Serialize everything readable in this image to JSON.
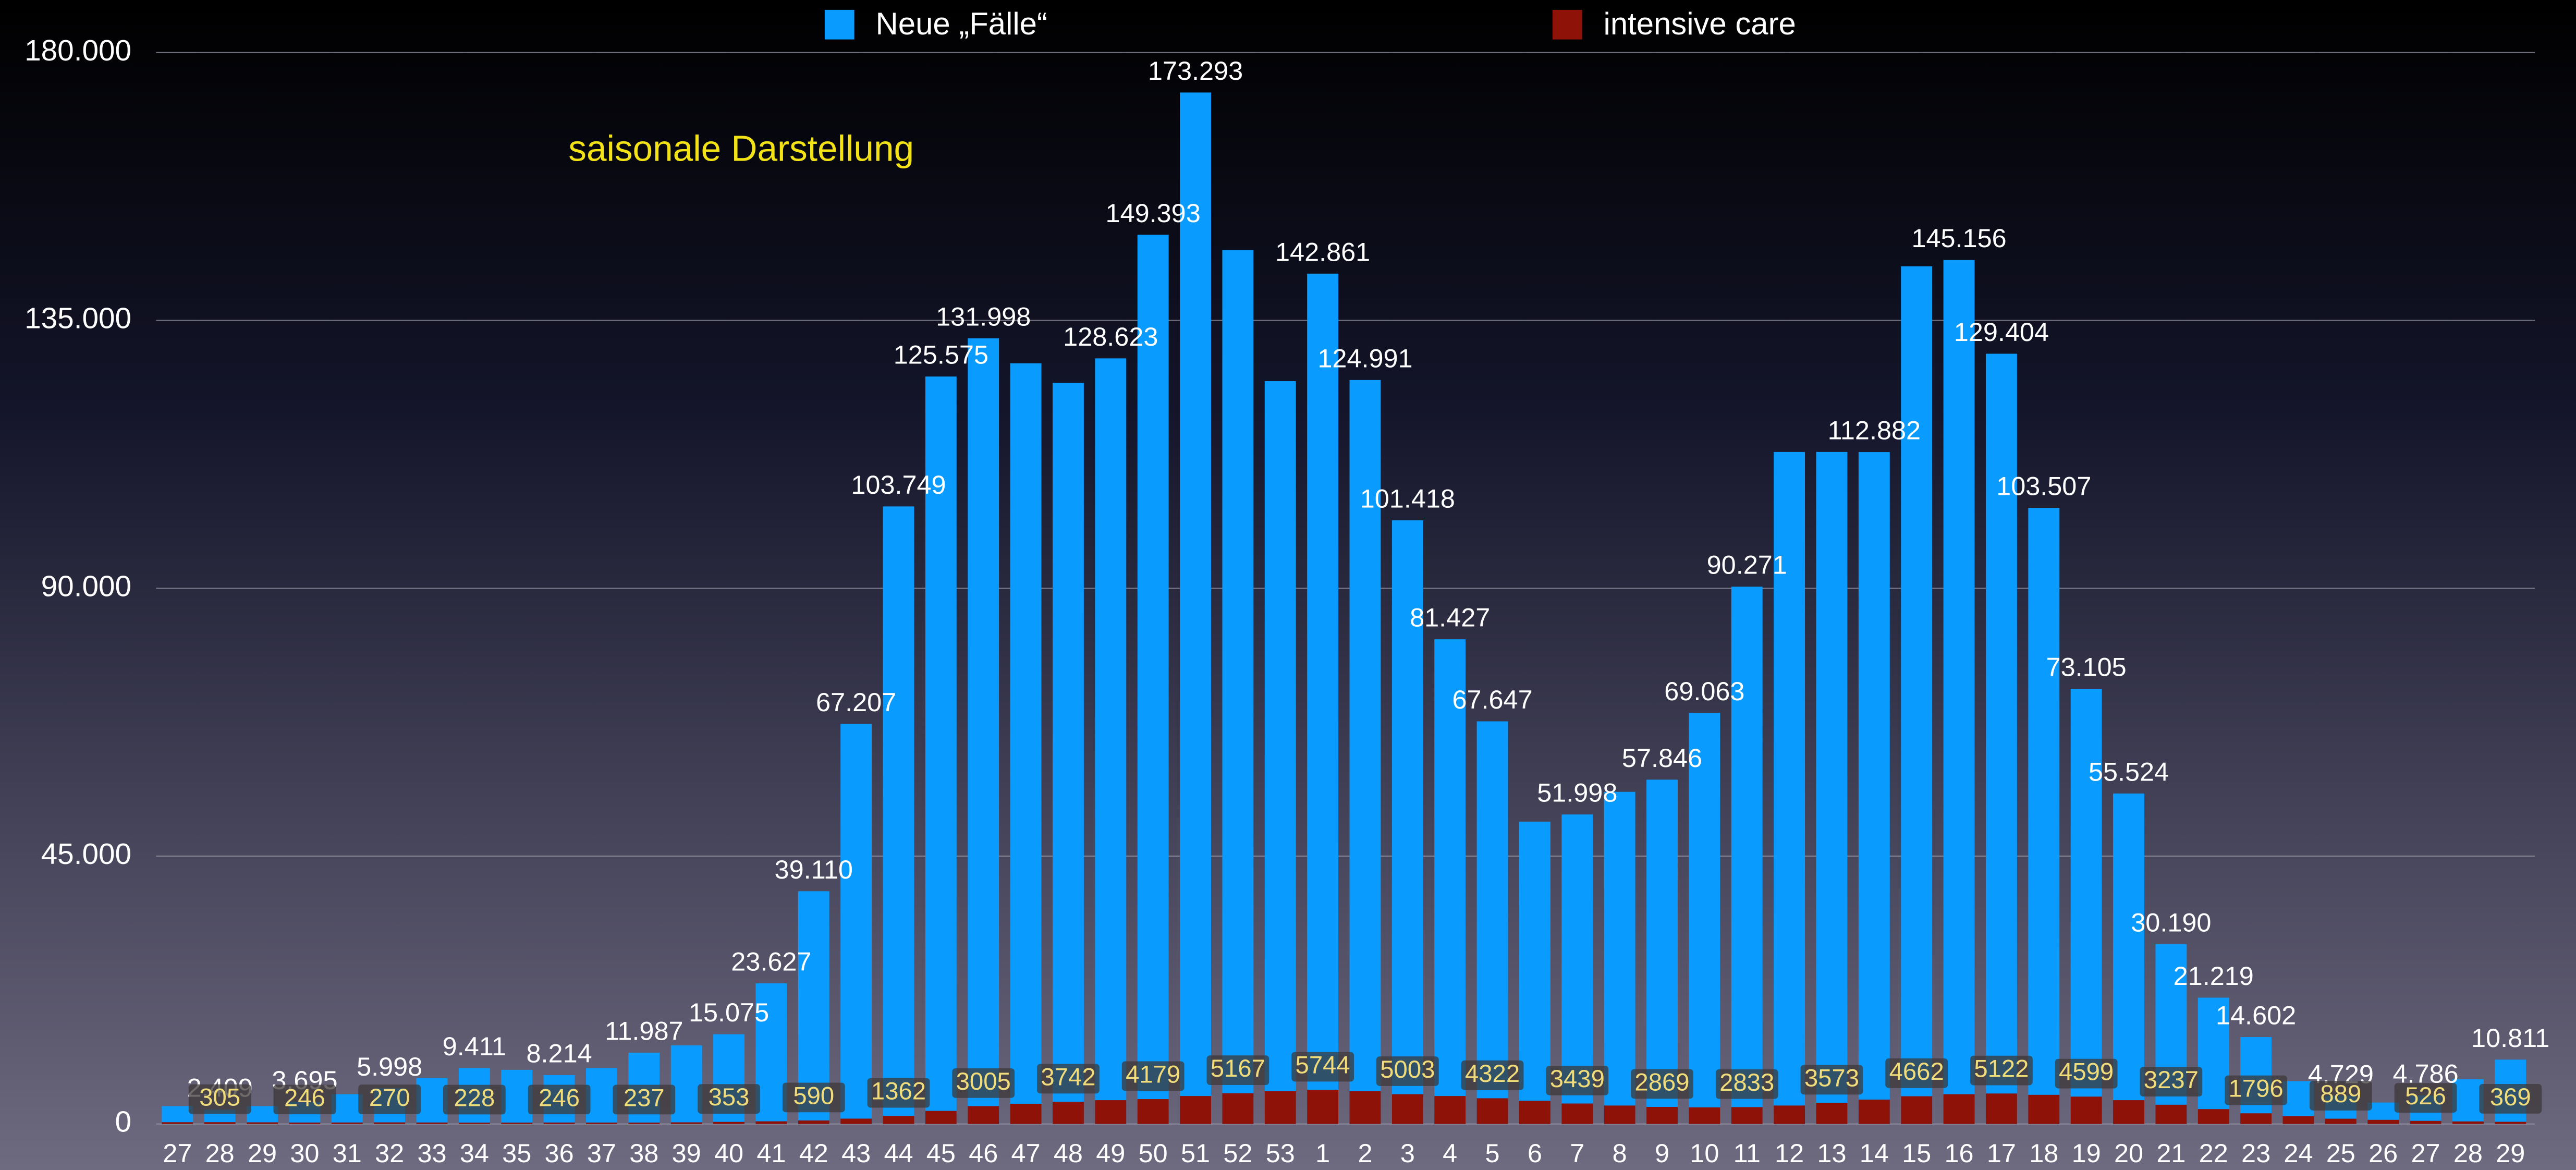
{
  "chart_data": {
    "type": "bar",
    "annotation": "saisonale Darstellung",
    "categories": [
      "27",
      "28",
      "29",
      "30",
      "31",
      "32",
      "33",
      "34",
      "35",
      "36",
      "37",
      "38",
      "39",
      "40",
      "41",
      "42",
      "43",
      "44",
      "45",
      "46",
      "47",
      "48",
      "49",
      "50",
      "51",
      "52",
      "53",
      "1",
      "2",
      "3",
      "4",
      "5",
      "6",
      "7",
      "8",
      "9",
      "10",
      "11",
      "12",
      "13",
      "14",
      "15",
      "16",
      "17",
      "18",
      "19",
      "20",
      "21",
      "22",
      "23",
      "24",
      "25",
      "26",
      "27",
      "28",
      "29"
    ],
    "series": [
      {
        "name": "Neue „Fälle“",
        "color": "#0a9bff",
        "values": [
          3000,
          2409,
          3000,
          3695,
          5000,
          5998,
          7700,
          9411,
          9100,
          8214,
          9400,
          11987,
          13200,
          15075,
          23627,
          39110,
          67207,
          103749,
          125575,
          131998,
          127800,
          124500,
          128623,
          149393,
          173293,
          146800,
          124800,
          142861,
          124991,
          101418,
          81427,
          67647,
          50800,
          51998,
          55800,
          57846,
          69063,
          90271,
          112900,
          112900,
          112882,
          144100,
          145156,
          129404,
          103507,
          73105,
          55524,
          30190,
          21219,
          14602,
          7200,
          4729,
          3600,
          4786,
          7500,
          10811
        ],
        "value_labels": [
          null,
          "2.409",
          null,
          "3.695",
          null,
          "5.998",
          null,
          "9.411",
          null,
          "8.214",
          null,
          "11.987",
          null,
          "15.075",
          "23.627",
          "39.110",
          "67.207",
          "103.749",
          "125.575",
          "131.998",
          null,
          null,
          "128.623",
          "149.393",
          "173.293",
          null,
          null,
          "142.861",
          "124.991",
          "101.418",
          "81.427",
          "67.647",
          null,
          "51.998",
          null,
          "57.846",
          "69.063",
          "90.271",
          null,
          null,
          "112.882",
          null,
          "145.156",
          "129.404",
          "103.507",
          "73.105",
          "55.524",
          "30.190",
          "21.219",
          "14.602",
          null,
          "4.729",
          null,
          "4.786",
          null,
          "10.811"
        ]
      },
      {
        "name": "intensive care",
        "color": "#8e1208",
        "values": [
          300,
          305,
          280,
          246,
          250,
          270,
          250,
          228,
          230,
          246,
          240,
          237,
          280,
          353,
          450,
          590,
          900,
          1362,
          2200,
          3005,
          3400,
          3742,
          4000,
          4179,
          4700,
          5167,
          5500,
          5744,
          5500,
          5003,
          4700,
          4322,
          3900,
          3439,
          3100,
          2869,
          2800,
          2833,
          3100,
          3573,
          4100,
          4662,
          5000,
          5122,
          4900,
          4599,
          4000,
          3237,
          2500,
          1796,
          1300,
          889,
          700,
          526,
          430,
          369
        ],
        "labeled": [
          false,
          true,
          false,
          true,
          false,
          true,
          false,
          true,
          false,
          true,
          false,
          true,
          false,
          true,
          false,
          true,
          false,
          true,
          false,
          true,
          false,
          true,
          false,
          true,
          false,
          true,
          false,
          true,
          false,
          true,
          false,
          true,
          false,
          true,
          false,
          true,
          false,
          true,
          false,
          true,
          false,
          true,
          false,
          true,
          false,
          true,
          false,
          true,
          false,
          true,
          false,
          true,
          false,
          true,
          false,
          true
        ]
      }
    ],
    "ylim": [
      0,
      180000
    ],
    "yticks": [
      0,
      {
        "value": 45000,
        "label": "45.000"
      },
      {
        "value": 90000,
        "label": "90.000"
      },
      {
        "value": 135000,
        "label": "135.000"
      },
      {
        "value": 180000,
        "label": "180.000"
      }
    ],
    "grid": true
  }
}
